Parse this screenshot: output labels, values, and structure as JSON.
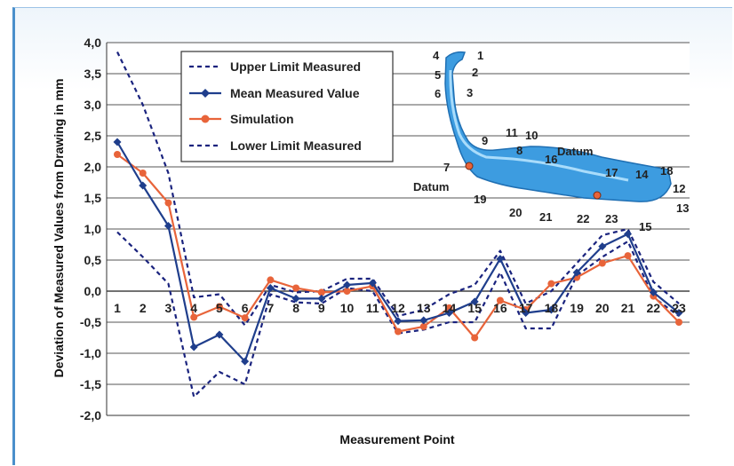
{
  "chart_data": {
    "type": "line",
    "title": "",
    "xlabel": "Measurement Point",
    "ylabel": "Deviation of Measured Values from Drawing in mm",
    "ylim": [
      -2.0,
      4.0
    ],
    "ytick_step": 0.5,
    "ytick_labels": [
      "-2,0",
      "-1,5",
      "-1,0",
      "-0,5",
      "0,0",
      "0,5",
      "1,0",
      "1,5",
      "2,0",
      "2,5",
      "3,0",
      "3,5",
      "4,0"
    ],
    "categories": [
      "1",
      "2",
      "3",
      "4",
      "5",
      "6",
      "7",
      "8",
      "9",
      "10",
      "11",
      "12",
      "13",
      "14",
      "15",
      "16",
      "17",
      "18",
      "19",
      "20",
      "21",
      "22",
      "23"
    ],
    "grid": true,
    "legend_position": "top-center",
    "series": [
      {
        "name": "Upper Limit Measured",
        "style": "dashed",
        "color": "#1a237e",
        "values": [
          3.85,
          3.0,
          1.9,
          -0.1,
          -0.05,
          -0.55,
          0.1,
          -0.02,
          0.0,
          0.2,
          0.2,
          -0.4,
          -0.3,
          -0.05,
          0.1,
          0.65,
          -0.2,
          0.0,
          0.45,
          0.9,
          1.0,
          0.15,
          -0.2
        ]
      },
      {
        "name": "Mean Measured Value",
        "style": "solid-marker",
        "color": "#1f3e8c",
        "values": [
          2.4,
          1.7,
          1.05,
          -0.9,
          -0.7,
          -1.13,
          0.05,
          -0.12,
          -0.12,
          0.1,
          0.13,
          -0.48,
          -0.47,
          -0.35,
          -0.17,
          0.52,
          -0.35,
          -0.3,
          0.3,
          0.72,
          0.92,
          -0.02,
          -0.35
        ]
      },
      {
        "name": "Simulation",
        "style": "solid-marker",
        "color": "#e8643a",
        "values": [
          2.2,
          1.9,
          1.42,
          -0.42,
          -0.25,
          -0.43,
          0.18,
          0.05,
          -0.02,
          0.0,
          0.08,
          -0.65,
          -0.57,
          -0.27,
          -0.75,
          -0.15,
          -0.3,
          0.12,
          0.22,
          0.45,
          0.57,
          -0.08,
          -0.5
        ]
      },
      {
        "name": "Lower Limit Measured",
        "style": "dashed",
        "color": "#1a237e",
        "values": [
          0.95,
          0.55,
          0.12,
          -1.7,
          -1.3,
          -1.5,
          -0.05,
          -0.18,
          -0.2,
          0.05,
          0.0,
          -0.68,
          -0.62,
          -0.5,
          -0.5,
          0.3,
          -0.6,
          -0.6,
          0.25,
          0.55,
          0.8,
          -0.1,
          -0.4
        ]
      }
    ],
    "inset_labels": {
      "points": [
        "1",
        "2",
        "3",
        "4",
        "5",
        "6",
        "7",
        "8",
        "9",
        "10",
        "11",
        "12",
        "13",
        "14",
        "15",
        "16",
        "17",
        "18",
        "19",
        "20",
        "21",
        "22",
        "23"
      ],
      "datum": "Datum"
    }
  }
}
